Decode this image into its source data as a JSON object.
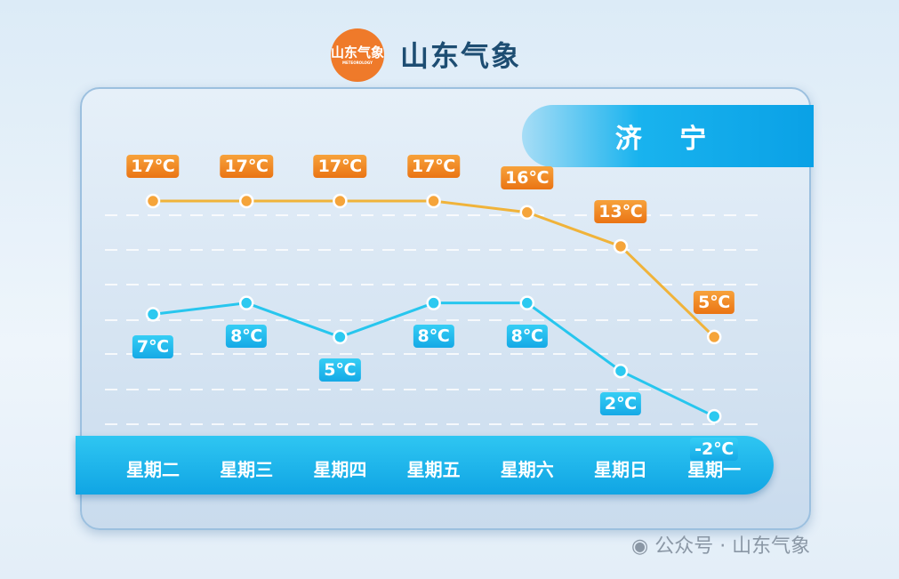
{
  "header": {
    "logo_text": "山东气象",
    "logo_subtext": "METEOROLOGY",
    "brand": "山东气象"
  },
  "city": "济 宁",
  "watermark": "公众号 · 山东气象",
  "colors": {
    "high": "#f0b33a",
    "low": "#27c6ee",
    "label_high": "#ee7d1e",
    "label_low": "#1db4ea"
  },
  "chart_data": {
    "type": "line",
    "categories": [
      "星期二",
      "星期三",
      "星期四",
      "星期五",
      "星期六",
      "星期日",
      "星期一"
    ],
    "series": [
      {
        "values": [
          17,
          17,
          17,
          17,
          16,
          13,
          5
        ],
        "labels": [
          "17℃",
          "17℃",
          "17℃",
          "17℃",
          "16℃",
          "13℃",
          "5℃"
        ]
      },
      {
        "values": [
          7,
          8,
          5,
          8,
          8,
          2,
          -2
        ],
        "labels": [
          "7℃",
          "8℃",
          "5℃",
          "8℃",
          "8℃",
          "2℃",
          "-2℃"
        ]
      }
    ],
    "unit": "℃",
    "grid": true
  }
}
